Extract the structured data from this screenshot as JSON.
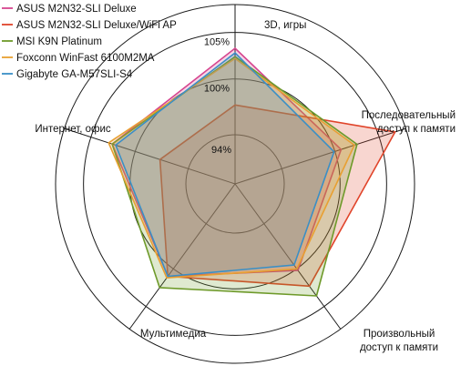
{
  "chart_data": {
    "type": "radar",
    "axes": [
      {
        "label_lines": [
          "3D, игры"
        ]
      },
      {
        "label_lines": [
          "Последовательный",
          "доступ к памяти"
        ]
      },
      {
        "label_lines": [
          "Произвольный",
          "доступ к памяти"
        ]
      },
      {
        "label_lines": [
          "Мультимедиа"
        ]
      },
      {
        "label_lines": [
          "Интернет, офис"
        ]
      }
    ],
    "rings": [
      {
        "value": 94,
        "label": "94%"
      },
      {
        "value": 100,
        "label": "100%"
      },
      {
        "value": 105,
        "label": "105%"
      }
    ],
    "outer_ring_value": 108,
    "r_range": [
      88,
      108
    ],
    "legend_position": "top-left",
    "series": [
      {
        "name": "ASUS M2N32-SLI Deluxe",
        "color": "#d6458f",
        "values": [
          103.3,
          100.7,
          100.2,
          101.0,
          102.6
        ]
      },
      {
        "name": "ASUS M2N32-SLI Deluxe/WiFi AP",
        "color": "#e0442a",
        "values": [
          97.2,
          106.8,
          102.3,
          101.0,
          97.2
        ]
      },
      {
        "name": "MSI K9N Platinum",
        "color": "#6e9a2a",
        "values": [
          102.4,
          102.5,
          103.6,
          102.5,
          102.6
        ]
      },
      {
        "name": "Foxconn WinFast 6100M2MA",
        "color": "#e8a032",
        "values": [
          102.2,
          102.2,
          100.0,
          101.2,
          103.0
        ]
      },
      {
        "name": "Gigabyte GA-M57SLI-S4",
        "color": "#3a8fc6",
        "values": [
          102.8,
          99.9,
          99.5,
          101.0,
          102.2
        ]
      }
    ]
  }
}
